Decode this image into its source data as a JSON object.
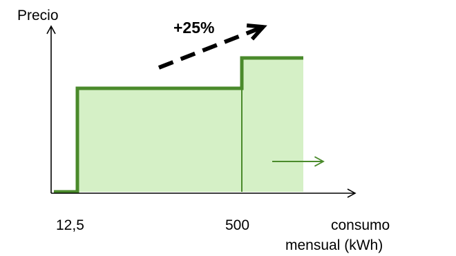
{
  "chart_data": {
    "type": "area",
    "ylabel": "Precio",
    "xlabel_line1": "consumo",
    "xlabel_line2": "mensual  (kWh)",
    "x_ticks": [
      {
        "value": 12.5,
        "label": "12,5"
      },
      {
        "value": 500,
        "label": "500"
      }
    ],
    "steps": [
      {
        "x_from": 12.5,
        "x_to": 500,
        "relative_price": 1.0
      },
      {
        "x_from": 500,
        "x_to": null,
        "relative_price": 1.25
      }
    ],
    "increase_label": "+25%",
    "grid": false,
    "colors": {
      "fill": "#d5f0c6",
      "line": "#4a8a2b",
      "axis": "#000000",
      "arrow": "#000000"
    }
  }
}
